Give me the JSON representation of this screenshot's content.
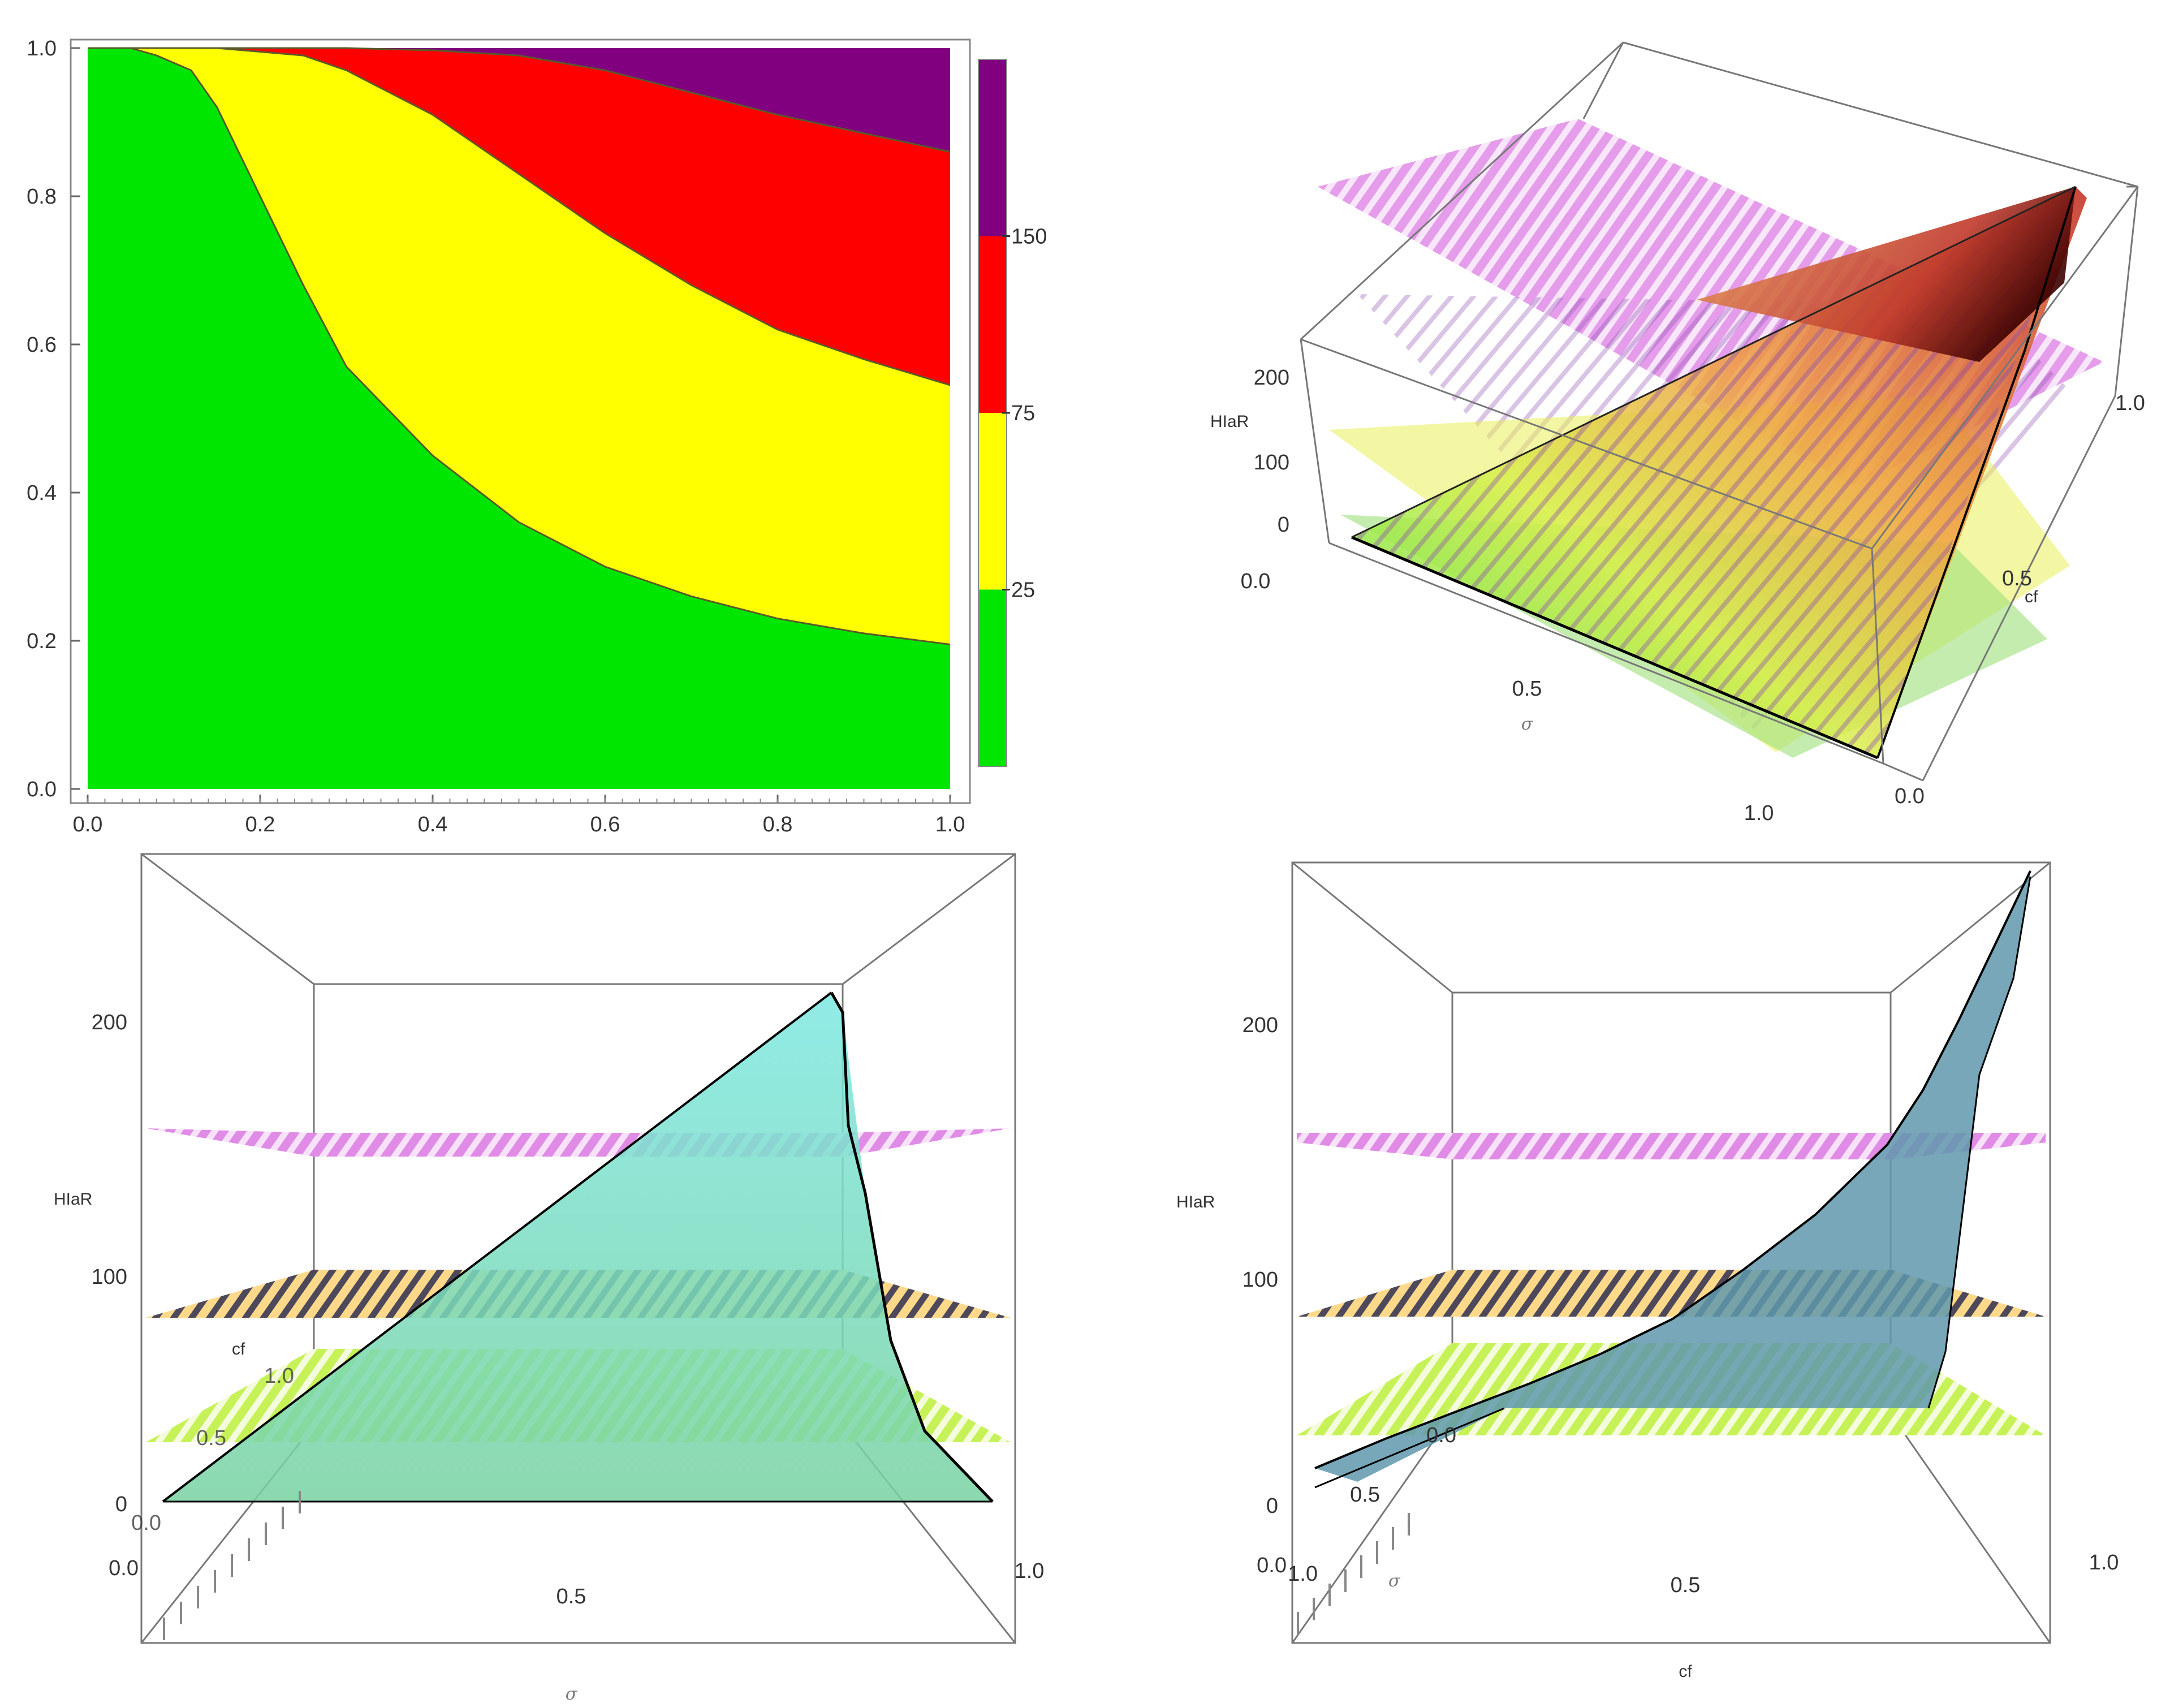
{
  "figure": {
    "description_tags": [
      "region-plot",
      "3d-surface-oblique",
      "3d-surface-front-sigma",
      "3d-surface-front-cf"
    ]
  },
  "chart_data": [
    {
      "type": "area",
      "title": "",
      "xlabel": "",
      "ylabel": "",
      "xlim": [
        0,
        1
      ],
      "ylim": [
        0,
        1
      ],
      "x_ticks": [
        "0.0",
        "0.2",
        "0.4",
        "0.6",
        "0.8",
        "1.0"
      ],
      "y_ticks": [
        "0.0",
        "0.2",
        "0.4",
        "0.6",
        "0.8",
        "1.0"
      ],
      "regions": [
        {
          "name": "green",
          "color": "#00e600"
        },
        {
          "name": "yellow",
          "color": "#ffff00"
        },
        {
          "name": "red",
          "color": "#ff0000"
        },
        {
          "name": "purple",
          "color": "#800080"
        }
      ],
      "boundaries": [
        {
          "level": 25,
          "x": [
            0.0,
            0.05,
            0.08,
            0.1,
            0.12,
            0.15,
            0.2,
            0.25,
            0.3,
            0.4,
            0.5,
            0.6,
            0.7,
            0.8,
            0.9,
            1.0
          ],
          "y": [
            1.0,
            1.0,
            0.99,
            0.98,
            0.97,
            0.92,
            0.8,
            0.68,
            0.57,
            0.45,
            0.36,
            0.3,
            0.26,
            0.23,
            0.21,
            0.195
          ]
        },
        {
          "level": 75,
          "x": [
            0.0,
            0.1,
            0.15,
            0.2,
            0.25,
            0.3,
            0.4,
            0.5,
            0.6,
            0.7,
            0.8,
            0.9,
            1.0
          ],
          "y": [
            1.0,
            1.0,
            1.0,
            0.995,
            0.99,
            0.97,
            0.91,
            0.83,
            0.75,
            0.68,
            0.62,
            0.58,
            0.545
          ]
        },
        {
          "level": 150,
          "x": [
            0.0,
            0.2,
            0.3,
            0.4,
            0.5,
            0.6,
            0.7,
            0.8,
            0.9,
            1.0
          ],
          "y": [
            1.0,
            1.0,
            1.0,
            0.997,
            0.99,
            0.97,
            0.94,
            0.91,
            0.885,
            0.86
          ]
        }
      ],
      "legend": {
        "placement": "right",
        "labels": [
          "25",
          "75",
          "150"
        ],
        "bands": [
          "#00e600",
          "#ffff00",
          "#ff0000",
          "#800080"
        ],
        "band_fractions": [
          0.25,
          0.25,
          0.25,
          0.25
        ]
      }
    },
    {
      "type": "surface3d",
      "view": "oblique",
      "zlabel": "HIaR",
      "xlabel": "σ",
      "ylabel": "cf",
      "z_ticks": [
        "0",
        "100",
        "200"
      ],
      "x_ticks": [
        "0.0",
        "0.5",
        "1.0"
      ],
      "y_ticks": [
        "0.0",
        "0.5",
        "1.0"
      ],
      "planes": [
        25,
        75,
        150
      ],
      "zmax": 250
    },
    {
      "type": "surface3d",
      "view": "front-sigma",
      "zlabel": "HIaR",
      "xlabel": "σ",
      "ylabel": "cf",
      "z_ticks": [
        "0",
        "100",
        "200"
      ],
      "x_ticks": [
        "0.0",
        "0.5",
        "1.0"
      ],
      "y_ticks": [
        "0.0",
        "0.5",
        "1.0"
      ],
      "depth_ticks": [
        "0.0",
        "0.5",
        "1.0"
      ],
      "planes": [
        25,
        75,
        150
      ],
      "peak": 200
    },
    {
      "type": "surface3d",
      "view": "front-cf",
      "zlabel": "HIaR",
      "xlabel": "cf",
      "ylabel": "σ",
      "z_ticks": [
        "0",
        "100",
        "200"
      ],
      "x_ticks": [
        "0.0",
        "0.5",
        "1.0"
      ],
      "y_ticks": [
        "1.0",
        "0.5",
        "0.0"
      ],
      "depth_ticks": [
        "0.0",
        "0.5",
        "1.0"
      ],
      "planes": [
        25,
        75,
        150
      ],
      "curve_x": [
        0.0,
        0.1,
        0.2,
        0.3,
        0.4,
        0.5,
        0.6,
        0.7,
        0.8,
        0.85,
        0.9,
        0.95,
        1.0
      ],
      "curve_z": [
        10,
        22,
        33,
        44,
        56,
        70,
        90,
        112,
        140,
        162,
        190,
        220,
        250
      ]
    }
  ]
}
